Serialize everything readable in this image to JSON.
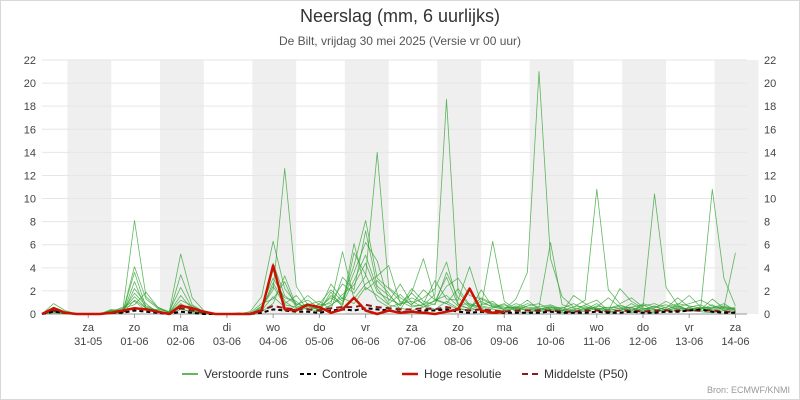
{
  "title": "Neerslag (mm, 6 uurlijks)",
  "subtitle": "De Bilt, vrijdag 30 mei 2025 (Versie vr 00 uur)",
  "source": "Bron: ECMWF/KNMI",
  "colors": {
    "ensemble": "#2ca02c",
    "control": "#000000",
    "high_res": "#cc1100",
    "median": "#8b1a1a",
    "weekend_band": "#efefef",
    "grid": "#e6e6e6"
  },
  "chart_data": {
    "type": "line",
    "x_unit": "6-hour step from vr 30-05 00 uur",
    "ylim": [
      0,
      22
    ],
    "yticks": [
      0,
      2,
      4,
      6,
      8,
      10,
      12,
      14,
      16,
      18,
      20,
      22
    ],
    "day_labels": [
      {
        "day": "za",
        "date": "31-05",
        "x": 4
      },
      {
        "day": "zo",
        "date": "01-06",
        "x": 8
      },
      {
        "day": "ma",
        "date": "02-06",
        "x": 12
      },
      {
        "day": "di",
        "date": "03-06",
        "x": 16
      },
      {
        "day": "wo",
        "date": "04-06",
        "x": 20
      },
      {
        "day": "do",
        "date": "05-06",
        "x": 24
      },
      {
        "day": "vr",
        "date": "06-06",
        "x": 28
      },
      {
        "day": "za",
        "date": "07-06",
        "x": 32
      },
      {
        "day": "zo",
        "date": "08-06",
        "x": 36
      },
      {
        "day": "ma",
        "date": "09-06",
        "x": 40
      },
      {
        "day": "di",
        "date": "10-06",
        "x": 44
      },
      {
        "day": "wo",
        "date": "11-06",
        "x": 48
      },
      {
        "day": "do",
        "date": "12-06",
        "x": 52
      },
      {
        "day": "vr",
        "date": "13-06",
        "x": 56
      },
      {
        "day": "za",
        "date": "14-06",
        "x": 60
      }
    ],
    "shaded_bands": [
      [
        2.2,
        6
      ],
      [
        10.2,
        14
      ],
      [
        18.2,
        22
      ],
      [
        26.2,
        30
      ],
      [
        34.2,
        38
      ],
      [
        42.2,
        46
      ],
      [
        50.2,
        54
      ],
      [
        58.2,
        62
      ]
    ],
    "series": [
      {
        "name": "Verstoorde runs",
        "style": "ensemble",
        "members": [
          [
            0,
            0.4,
            0.1,
            0,
            0,
            0,
            0.2,
            0.1,
            1.2,
            0.5,
            0.3,
            0,
            0.4,
            0.2,
            0.1,
            0,
            0,
            0.1,
            0,
            0.3,
            1.5,
            0.6,
            0.3,
            0.5,
            0.2,
            0.8,
            1.4,
            0.9,
            2.3,
            1.6,
            0.8,
            0.5,
            0.3,
            0.6,
            1.2,
            0.9,
            0.4,
            0.3,
            0.5,
            0.2,
            0.1,
            0.6,
            0.3,
            0.2,
            0.4,
            0.1,
            0.3,
            0.2,
            0.5,
            0.1,
            0.3,
            0.6,
            0.2,
            0.1,
            0.4,
            0.8,
            0.3,
            0.2,
            0.1,
            0.3,
            0.1
          ],
          [
            0,
            0.9,
            0.3,
            0,
            0,
            0,
            0.1,
            0.4,
            8.1,
            1.5,
            0.6,
            0.2,
            0.5,
            0.1,
            0,
            0,
            0,
            0,
            0,
            0.2,
            3.8,
            1.1,
            0.4,
            0.7,
            0.3,
            1.9,
            0.6,
            5.3,
            3.4,
            1.2,
            0.6,
            0.9,
            1.8,
            0.8,
            0.4,
            1.1,
            0.5,
            0.3,
            2.1,
            0.6,
            0.9,
            0.2,
            0.1,
            0.4,
            0.7,
            0.3,
            0.1,
            0.4,
            0.9,
            0.2,
            0.3,
            0.1,
            0.5,
            0.2,
            0.4,
            0.2,
            0.6,
            0.8,
            0.3,
            0.5,
            0.2
          ],
          [
            0,
            0.2,
            0,
            0,
            0,
            0,
            0.3,
            0.1,
            2.8,
            0.4,
            0.2,
            0.1,
            5.2,
            1.4,
            0.3,
            0,
            0,
            0,
            0,
            0.6,
            2.1,
            12.6,
            2.4,
            0.8,
            1.1,
            0.4,
            3.2,
            2.1,
            7.2,
            2.4,
            1.6,
            0.7,
            2.2,
            1.1,
            0.8,
            3.6,
            1.4,
            0.6,
            0.8,
            1.1,
            0.3,
            0.5,
            1.2,
            0.4,
            0.6,
            0.2,
            1.6,
            0.9,
            0.4,
            0.3,
            2.2,
            1.1,
            0.5,
            0.4,
            0.3,
            0.5,
            0.4,
            0.6,
            0.5,
            0.9,
            0.3
          ],
          [
            0,
            0.5,
            0.2,
            0,
            0,
            0,
            0,
            0.2,
            4.1,
            1.3,
            0.5,
            0.1,
            0.9,
            0.3,
            0.1,
            0,
            0,
            0,
            0.2,
            1.5,
            6.3,
            2.2,
            0.9,
            0.6,
            0.4,
            2.6,
            1.3,
            4.2,
            8.1,
            3.1,
            2.2,
            1.1,
            0.6,
            0.8,
            1.7,
            18.6,
            1.9,
            0.7,
            1.1,
            0.6,
            0.4,
            1.3,
            3.6,
            21.0,
            4.8,
            1.5,
            0.6,
            1.2,
            10.8,
            2.1,
            0.9,
            1.4,
            0.6,
            10.4,
            2.3,
            0.8,
            1.6,
            0.6,
            10.8,
            3.1,
            0.7
          ],
          [
            0,
            0.3,
            0.1,
            0,
            0,
            0,
            0.4,
            0.3,
            1.8,
            0.7,
            0.3,
            0,
            3.4,
            0.8,
            0.2,
            0,
            0,
            0,
            0,
            0.3,
            4.4,
            1.6,
            0.8,
            1.2,
            0.5,
            1.1,
            2.6,
            1.8,
            3.3,
            14.0,
            2.3,
            1.4,
            0.8,
            2.1,
            1.2,
            1.6,
            0.7,
            0.5,
            1.4,
            0.9,
            0.6,
            0.5,
            0.3,
            0.6,
            0.8,
            0.4,
            0.3,
            0.8,
            1.2,
            0.3,
            0.5,
            0.2,
            0.9,
            0.6,
            0.4,
            0.7,
            0.3,
            0.4,
            1.3,
            0.5,
            5.3
          ],
          [
            0,
            0.1,
            0,
            0,
            0,
            0,
            0.2,
            0.6,
            1.1,
            0.3,
            0.4,
            0.2,
            2.3,
            0.5,
            0.1,
            0,
            0,
            0,
            0,
            0.4,
            2.7,
            0.9,
            1.6,
            0.4,
            0.6,
            1.4,
            0.8,
            6.1,
            2.1,
            2.9,
            1.8,
            0.4,
            1.9,
            4.8,
            1.3,
            0.9,
            2.2,
            0.8,
            0.6,
            6.3,
            1.1,
            0.4,
            0.9,
            0.6,
            6.2,
            0.8,
            0.5,
            0.3,
            0.7,
            0.5,
            0.8,
            0.4,
            0.3,
            0.5,
            1.1,
            0.6,
            0.9,
            1.2,
            0.7,
            0.4,
            0.6
          ],
          [
            0,
            0.6,
            0.2,
            0,
            0,
            0,
            0.1,
            0.1,
            2.2,
            0.9,
            0.1,
            0.1,
            1.6,
            0.4,
            0.2,
            0,
            0,
            0,
            0.1,
            0.9,
            1.3,
            2.8,
            0.5,
            0.9,
            0.3,
            0.7,
            1.7,
            2.5,
            4.4,
            1.9,
            1.3,
            0.8,
            1.4,
            0.9,
            2.9,
            1.3,
            1.2,
            4.1,
            0.9,
            0.7,
            0.4,
            0.9,
            0.6,
            0.5,
            0.3,
            0.5,
            0.9,
            0.4,
            0.6,
            1.4,
            0.6,
            0.3,
            0.7,
            0.9,
            0.5,
            1.4,
            0.6,
            0.3,
            0.5,
            0.7,
            0.4
          ],
          [
            0,
            0.2,
            0.1,
            0,
            0,
            0,
            0.3,
            0.2,
            3.6,
            0.6,
            0.3,
            0,
            0.7,
            0.6,
            0.1,
            0,
            0,
            0,
            0,
            0.7,
            3.1,
            1.4,
            1.1,
            0.3,
            0.9,
            2.1,
            1.1,
            3.6,
            6.2,
            4.6,
            1.1,
            2.6,
            0.9,
            1.4,
            2.2,
            4.5,
            0.9,
            0.4,
            0.7,
            0.5,
            0.8,
            0.3,
            0.7,
            0.9,
            0.4,
            0.3,
            0.6,
            0.7,
            0.3,
            0.4,
            0.3,
            0.9,
            0.4,
            0.6,
            0.8,
            0.4,
            0.5,
            0.4,
            0.8,
            0.3,
            0.5
          ],
          [
            0,
            0.4,
            0.1,
            0,
            0,
            0,
            0.2,
            0.5,
            0.8,
            1.9,
            0.6,
            0.1,
            1.2,
            0.7,
            0.2,
            0,
            0,
            0,
            0,
            0.2,
            0.9,
            3.3,
            0.7,
            1.6,
            0.8,
            0.9,
            5.4,
            1.3,
            2.6,
            3.3,
            4.2,
            0.9,
            1.1,
            0.6,
            0.9,
            2.4,
            3.1,
            1.6,
            1.3,
            0.8,
            0.5,
            0.6,
            0.4,
            0.3,
            0.5,
            0.6,
            0.2,
            0.5,
            0.4,
            0.6,
            0.5,
            0.6,
            0.8,
            0.3,
            0.6,
            0.9,
            0.7,
            0.5,
            0.6,
            0.6,
            0.3
          ],
          [
            0,
            0.3,
            0.2,
            0,
            0,
            0,
            0.3,
            0.3,
            1.5,
            0.5,
            0.2,
            0.1,
            0.8,
            0.3,
            0.1,
            0,
            0,
            0,
            0,
            0.5,
            2.4,
            0.8,
            0.6,
            0.9,
            0.4,
            1.6,
            0.9,
            2.9,
            5.1,
            2.2,
            0.9,
            1.7,
            0.7,
            0.8,
            1.1,
            3.2,
            0.8,
            0.9,
            0.6,
            0.4,
            0.3,
            0.7,
            0.5,
            0.4,
            0.6,
            0.3,
            0.4,
            0.6,
            0.5,
            0.4,
            0.7,
            0.5,
            0.4,
            0.7,
            0.3,
            0.6,
            0.4,
            0.5,
            0.4,
            0.6,
            0.4
          ]
        ]
      },
      {
        "name": "Controle",
        "style": "control",
        "values": [
          0,
          0.2,
          0.1,
          0,
          0,
          0,
          0.1,
          0.1,
          0.3,
          0.2,
          0.1,
          0,
          0.2,
          0.1,
          0,
          0,
          0,
          0,
          0,
          0.1,
          0.4,
          0.3,
          0.2,
          0.2,
          0.1,
          0.3,
          0.4,
          0.3,
          0.5,
          0.4,
          0.3,
          0.2,
          0.2,
          0.3,
          0.3,
          0.4,
          0.2,
          0.1,
          0.2,
          0.1,
          0.1,
          0.1,
          0.1,
          0.1,
          0.2,
          0.1,
          0.1,
          0.1,
          0.2,
          0.1,
          0.1,
          0.2,
          0.1,
          0.1,
          0.2,
          0.2,
          0.3,
          0.4,
          0.2,
          0.1,
          0.1
        ]
      },
      {
        "name": "Hoge resolutie",
        "style": "high_res",
        "values": [
          0,
          0.5,
          0.1,
          0,
          0,
          0,
          0.1,
          0.3,
          0.5,
          0.4,
          0.2,
          0,
          0.7,
          0.5,
          0.2,
          0,
          0,
          0,
          0,
          0.3,
          4.2,
          0.4,
          0.3,
          0.8,
          0.6,
          0.1,
          0.4,
          1.4,
          0.3,
          0,
          0.3,
          0.1,
          0.2,
          0.1,
          0,
          0.2,
          0.4,
          2.2,
          0.3,
          0.1,
          0.2
        ]
      },
      {
        "name": "Middelste (P50)",
        "style": "median",
        "values": [
          0,
          0.3,
          0.1,
          0,
          0,
          0,
          0.1,
          0.2,
          0.5,
          0.4,
          0.2,
          0,
          0.5,
          0.3,
          0.1,
          0,
          0,
          0,
          0,
          0.3,
          0.7,
          0.5,
          0.4,
          0.4,
          0.3,
          0.5,
          0.6,
          0.6,
          0.8,
          0.6,
          0.5,
          0.4,
          0.4,
          0.5,
          0.4,
          0.6,
          0.4,
          0.3,
          0.4,
          0.3,
          0.2,
          0.3,
          0.3,
          0.3,
          0.3,
          0.2,
          0.2,
          0.3,
          0.3,
          0.2,
          0.3,
          0.3,
          0.2,
          0.3,
          0.3,
          0.3,
          0.3,
          0.3,
          0.3,
          0.2,
          0.2
        ]
      }
    ],
    "legend": [
      {
        "label": "Verstoorde runs",
        "style": "ensemble"
      },
      {
        "label": "Controle",
        "style": "control"
      },
      {
        "label": "Hoge resolutie",
        "style": "high_res"
      },
      {
        "label": "Middelste (P50)",
        "style": "median"
      }
    ]
  }
}
